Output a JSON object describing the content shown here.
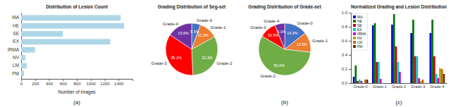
{
  "chart_data": [
    {
      "type": "bar",
      "orientation": "horizontal",
      "title": "Distribution of Lesion Count",
      "x_label": "Number of images",
      "categories": [
        "PM",
        "LM",
        "NV",
        "IRMA",
        "EX",
        "SE",
        "HE",
        "MA"
      ],
      "values": [
        40,
        80,
        60,
        200,
        1280,
        600,
        1480,
        1430
      ],
      "color": "#aed6e8",
      "xlim": [
        0,
        1600
      ],
      "xticks": [
        0,
        200,
        400,
        600,
        800,
        1000,
        1200,
        1400
      ],
      "annotations": [
        "(a)"
      ]
    },
    {
      "type": "pie",
      "title": "Grading Distribution of Seg-set",
      "categories": [
        "Grade-0",
        "Grade-1",
        "Grade-2",
        "Grade-3",
        "Grade-4"
      ],
      "values": [
        5.5,
        11.5,
        32.3,
        35.1,
        15.6
      ],
      "value_labels": [
        "5.5%",
        "11.5%",
        "32.3%",
        "35.1%",
        "15.6%"
      ],
      "colors": [
        "#4472c4",
        "#ed7d31",
        "#70ad47",
        "#ff0000",
        "#7030a0"
      ],
      "data_labels": true
    },
    {
      "type": "pie",
      "title": "Grading Distribution of Grade-set",
      "categories": [
        "Grade-0",
        "Grade-1",
        "Grade-2",
        "Grade-3",
        "Grade-4"
      ],
      "values": [
        14.3,
        12.5,
        56.6,
        10.5,
        6.1
      ],
      "value_labels": [
        "14.3%",
        "12.5%",
        "56.6%",
        "10.5%",
        "6.1%"
      ],
      "colors": [
        "#4472c4",
        "#ed7d31",
        "#70ad47",
        "#ff0000",
        "#7030a0"
      ],
      "data_labels": true,
      "annotations": [
        "(b)"
      ]
    },
    {
      "type": "bar",
      "title": "Normalized Grading and Lesion Distribution",
      "categories": [
        "Grade-0",
        "Grade-1",
        "Grade-2",
        "Grade-3",
        "Grade-4"
      ],
      "series": [
        {
          "name": "MA",
          "color": "#0000cc",
          "values": [
            0.09,
            0.82,
            0.83,
            0.71,
            0.71
          ]
        },
        {
          "name": "HE",
          "color": "#007700",
          "values": [
            0.25,
            0.85,
            0.98,
            0.9,
            0.9
          ]
        },
        {
          "name": "SE",
          "color": "#cc0000",
          "values": [
            0.03,
            0.3,
            0.52,
            0.38,
            0.38
          ]
        },
        {
          "name": "EX",
          "color": "#00cccc",
          "values": [
            0.05,
            0.3,
            0.3,
            0.38,
            0.13
          ]
        },
        {
          "name": "IRMA",
          "color": "#cc00cc",
          "values": [
            0.03,
            0.06,
            0.16,
            0.07,
            0.07
          ]
        },
        {
          "name": "NV",
          "color": "#aaaa00",
          "values": [
            0.0,
            0.0,
            0.0,
            0.03,
            0.21
          ]
        },
        {
          "name": "LM",
          "color": "#cc6600",
          "values": [
            0.05,
            0.0,
            0.0,
            0.05,
            0.2
          ]
        },
        {
          "name": "PM",
          "color": "#663300",
          "values": [
            0.05,
            0.0,
            0.0,
            0.0,
            0.13
          ]
        }
      ],
      "ylim": [
        0,
        1
      ],
      "yticks": [
        {
          "value": 0,
          "label": "0.0"
        },
        0.2,
        0.4,
        0.6,
        0.8,
        {
          "value": 1,
          "label": "1.0"
        }
      ],
      "legend": "upper left",
      "annotations": [
        "(c)"
      ]
    }
  ]
}
